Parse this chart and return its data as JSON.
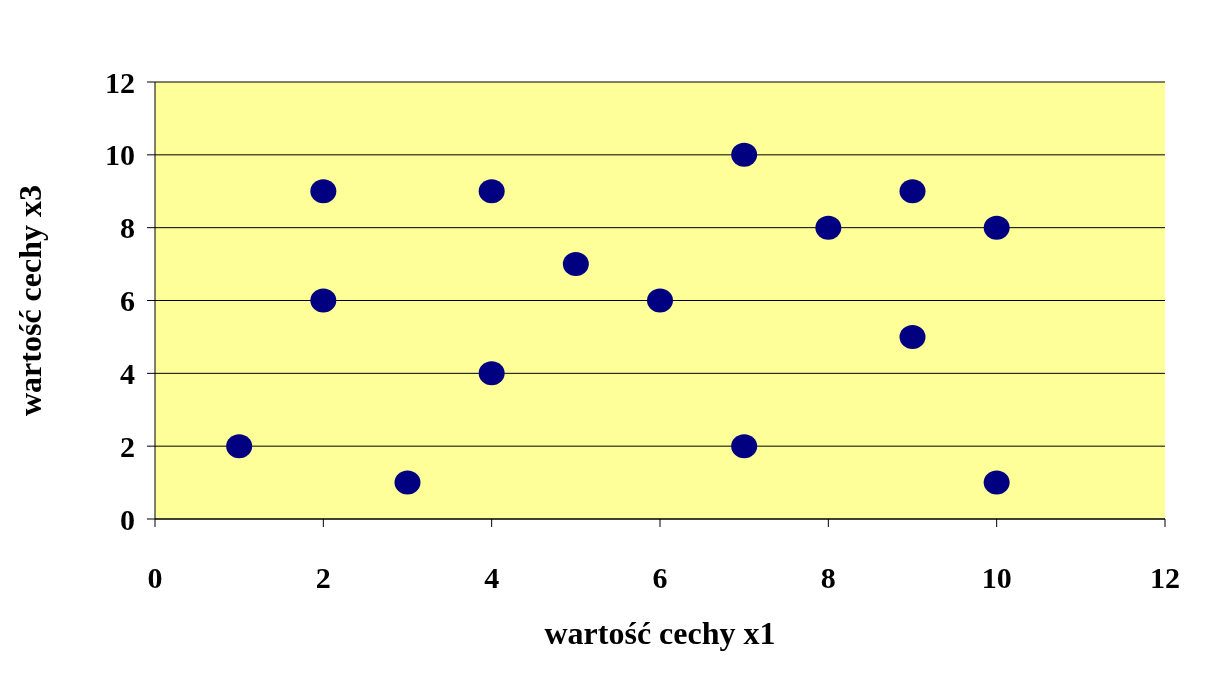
{
  "chart_data": {
    "type": "scatter",
    "xlabel": "wartość cechy x1",
    "ylabel": "wartość cechy x3",
    "x": [
      1,
      2,
      2,
      3,
      4,
      4,
      5,
      6,
      7,
      7,
      8,
      9,
      9,
      10,
      10
    ],
    "values": [
      2,
      9,
      6,
      1,
      9,
      4,
      7,
      6,
      10,
      2,
      8,
      9,
      5,
      8,
      1
    ],
    "color": "#000080",
    "marker": "circle",
    "xlim": [
      0,
      12
    ],
    "xticks": [
      0,
      2,
      4,
      6,
      8,
      10,
      12
    ],
    "ylim": [
      0,
      12
    ],
    "yticks": [
      0,
      2,
      4,
      6,
      8,
      10,
      12
    ],
    "grid": "y",
    "legend": false
  }
}
